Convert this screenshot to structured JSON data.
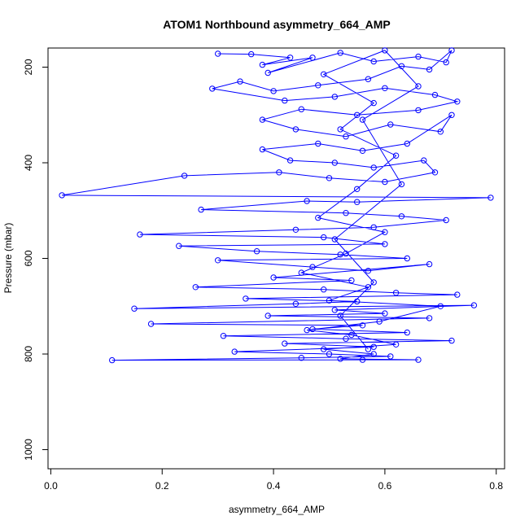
{
  "chart_data": {
    "type": "scatter",
    "title": "ATOM1 Northbound asymmetry_664_AMP",
    "xlabel": "asymmetry_664_AMP",
    "ylabel": "Pressure (mbar)",
    "xlim": [
      -0.005,
      0.815
    ],
    "ylim": [
      1040,
      160
    ],
    "y_axis_inverted": true,
    "x_ticks": [
      0.0,
      0.2,
      0.4,
      0.6,
      0.8
    ],
    "x_tick_labels": [
      "0.0",
      "0.2",
      "0.4",
      "0.6",
      "0.8"
    ],
    "y_ticks": [
      200,
      400,
      600,
      800,
      1000
    ],
    "y_tick_labels": [
      "200",
      "400",
      "600",
      "800",
      "1000"
    ],
    "grid": false,
    "legend": "none",
    "marker": "open-circle",
    "connected": true,
    "color": "#0000ff",
    "series": [
      {
        "values": [
          {
            "x": 0.3,
            "y": 172
          },
          {
            "x": 0.36,
            "y": 173
          },
          {
            "x": 0.43,
            "y": 180
          },
          {
            "x": 0.38,
            "y": 195
          },
          {
            "x": 0.47,
            "y": 180
          },
          {
            "x": 0.39,
            "y": 212
          },
          {
            "x": 0.52,
            "y": 170
          },
          {
            "x": 0.58,
            "y": 188
          },
          {
            "x": 0.66,
            "y": 178
          },
          {
            "x": 0.71,
            "y": 190
          },
          {
            "x": 0.72,
            "y": 165
          },
          {
            "x": 0.68,
            "y": 205
          },
          {
            "x": 0.63,
            "y": 198
          },
          {
            "x": 0.57,
            "y": 225
          },
          {
            "x": 0.48,
            "y": 238
          },
          {
            "x": 0.4,
            "y": 250
          },
          {
            "x": 0.34,
            "y": 230
          },
          {
            "x": 0.29,
            "y": 245
          },
          {
            "x": 0.42,
            "y": 270
          },
          {
            "x": 0.51,
            "y": 262
          },
          {
            "x": 0.6,
            "y": 244
          },
          {
            "x": 0.69,
            "y": 258
          },
          {
            "x": 0.73,
            "y": 272
          },
          {
            "x": 0.66,
            "y": 290
          },
          {
            "x": 0.55,
            "y": 300
          },
          {
            "x": 0.45,
            "y": 288
          },
          {
            "x": 0.38,
            "y": 310
          },
          {
            "x": 0.44,
            "y": 330
          },
          {
            "x": 0.53,
            "y": 345
          },
          {
            "x": 0.61,
            "y": 320
          },
          {
            "x": 0.7,
            "y": 335
          },
          {
            "x": 0.72,
            "y": 300
          },
          {
            "x": 0.64,
            "y": 360
          },
          {
            "x": 0.56,
            "y": 375
          },
          {
            "x": 0.48,
            "y": 360
          },
          {
            "x": 0.38,
            "y": 372
          },
          {
            "x": 0.43,
            "y": 395
          },
          {
            "x": 0.51,
            "y": 400
          },
          {
            "x": 0.58,
            "y": 410
          },
          {
            "x": 0.67,
            "y": 395
          },
          {
            "x": 0.69,
            "y": 420
          },
          {
            "x": 0.6,
            "y": 440
          },
          {
            "x": 0.5,
            "y": 432
          },
          {
            "x": 0.41,
            "y": 420
          },
          {
            "x": 0.24,
            "y": 427
          },
          {
            "x": 0.02,
            "y": 468
          },
          {
            "x": 0.79,
            "y": 473
          },
          {
            "x": 0.55,
            "y": 482
          },
          {
            "x": 0.46,
            "y": 480
          },
          {
            "x": 0.27,
            "y": 498
          },
          {
            "x": 0.53,
            "y": 505
          },
          {
            "x": 0.63,
            "y": 512
          },
          {
            "x": 0.71,
            "y": 520
          },
          {
            "x": 0.58,
            "y": 535
          },
          {
            "x": 0.44,
            "y": 540
          },
          {
            "x": 0.16,
            "y": 550
          },
          {
            "x": 0.49,
            "y": 556
          },
          {
            "x": 0.6,
            "y": 570
          },
          {
            "x": 0.23,
            "y": 574
          },
          {
            "x": 0.37,
            "y": 585
          },
          {
            "x": 0.52,
            "y": 592
          },
          {
            "x": 0.64,
            "y": 600
          },
          {
            "x": 0.3,
            "y": 604
          },
          {
            "x": 0.47,
            "y": 618
          },
          {
            "x": 0.57,
            "y": 626
          },
          {
            "x": 0.68,
            "y": 612
          },
          {
            "x": 0.4,
            "y": 640
          },
          {
            "x": 0.54,
            "y": 646
          },
          {
            "x": 0.26,
            "y": 660
          },
          {
            "x": 0.49,
            "y": 665
          },
          {
            "x": 0.62,
            "y": 672
          },
          {
            "x": 0.73,
            "y": 676
          },
          {
            "x": 0.35,
            "y": 684
          },
          {
            "x": 0.55,
            "y": 690
          },
          {
            "x": 0.44,
            "y": 695
          },
          {
            "x": 0.15,
            "y": 705
          },
          {
            "x": 0.76,
            "y": 698
          },
          {
            "x": 0.51,
            "y": 708
          },
          {
            "x": 0.6,
            "y": 715
          },
          {
            "x": 0.39,
            "y": 720
          },
          {
            "x": 0.68,
            "y": 725
          },
          {
            "x": 0.18,
            "y": 737
          },
          {
            "x": 0.56,
            "y": 740
          },
          {
            "x": 0.47,
            "y": 748
          },
          {
            "x": 0.64,
            "y": 755
          },
          {
            "x": 0.31,
            "y": 762
          },
          {
            "x": 0.53,
            "y": 768
          },
          {
            "x": 0.72,
            "y": 772
          },
          {
            "x": 0.42,
            "y": 778
          },
          {
            "x": 0.58,
            "y": 785
          },
          {
            "x": 0.33,
            "y": 795
          },
          {
            "x": 0.5,
            "y": 800
          },
          {
            "x": 0.61,
            "y": 805
          },
          {
            "x": 0.45,
            "y": 808
          },
          {
            "x": 0.11,
            "y": 813
          },
          {
            "x": 0.56,
            "y": 812
          },
          {
            "x": 0.66,
            "y": 812
          },
          {
            "x": 0.52,
            "y": 810
          },
          {
            "x": 0.58,
            "y": 800
          },
          {
            "x": 0.49,
            "y": 790
          },
          {
            "x": 0.62,
            "y": 780
          },
          {
            "x": 0.54,
            "y": 760
          },
          {
            "x": 0.46,
            "y": 750
          },
          {
            "x": 0.59,
            "y": 732
          },
          {
            "x": 0.7,
            "y": 700
          },
          {
            "x": 0.5,
            "y": 688
          },
          {
            "x": 0.57,
            "y": 660
          },
          {
            "x": 0.45,
            "y": 630
          },
          {
            "x": 0.53,
            "y": 590
          },
          {
            "x": 0.6,
            "y": 545
          },
          {
            "x": 0.48,
            "y": 515
          },
          {
            "x": 0.55,
            "y": 455
          },
          {
            "x": 0.62,
            "y": 385
          },
          {
            "x": 0.52,
            "y": 330
          },
          {
            "x": 0.58,
            "y": 275
          },
          {
            "x": 0.49,
            "y": 215
          },
          {
            "x": 0.6,
            "y": 165
          },
          {
            "x": 0.66,
            "y": 240
          },
          {
            "x": 0.56,
            "y": 310
          },
          {
            "x": 0.63,
            "y": 445
          },
          {
            "x": 0.51,
            "y": 560
          },
          {
            "x": 0.58,
            "y": 650
          },
          {
            "x": 0.52,
            "y": 720
          },
          {
            "x": 0.57,
            "y": 790
          }
        ]
      }
    ]
  }
}
